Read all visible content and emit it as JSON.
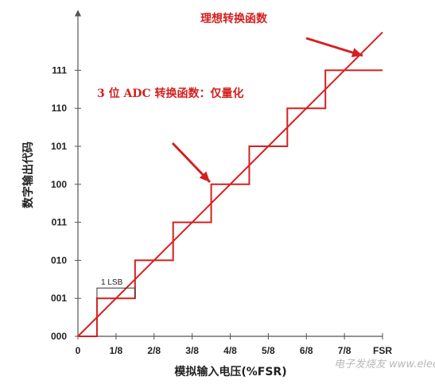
{
  "chart_data": {
    "type": "line",
    "xlabel": "模拟输入电压(%FSR)",
    "ylabel": "数字输出代码",
    "x_ticks": [
      "0",
      "1/8",
      "2/8",
      "3/8",
      "4/8",
      "5/8",
      "6/8",
      "7/8",
      "FSR"
    ],
    "y_ticks": [
      "000",
      "001",
      "010",
      "011",
      "100",
      "101",
      "110",
      "111"
    ],
    "xlim": [
      0,
      1
    ],
    "ylim": [
      0,
      7
    ],
    "series": [
      {
        "name": "理想转换函数",
        "color": "#d42020",
        "x": [
          0,
          1.0
        ],
        "y": [
          0,
          8.0
        ]
      },
      {
        "name": "3 位 ADC 转换函数：仅量化",
        "color": "#d42020",
        "step_x": [
          0,
          0.0625,
          0.1875,
          0.3125,
          0.4375,
          0.5625,
          0.6875,
          0.8125,
          1.0
        ],
        "step_y": [
          0,
          1,
          2,
          3,
          4,
          5,
          6,
          7
        ]
      }
    ],
    "annotations": {
      "ideal_label": "理想转换函数",
      "adc_label": "3 位 ADC 转换函数：仅量化",
      "lsb_label": "1 LSB"
    },
    "grid": false
  },
  "watermark": "电子发烧友 www.elecfans.com",
  "colors": {
    "accent": "#d42020",
    "axis": "#555555",
    "text": "#222222"
  }
}
